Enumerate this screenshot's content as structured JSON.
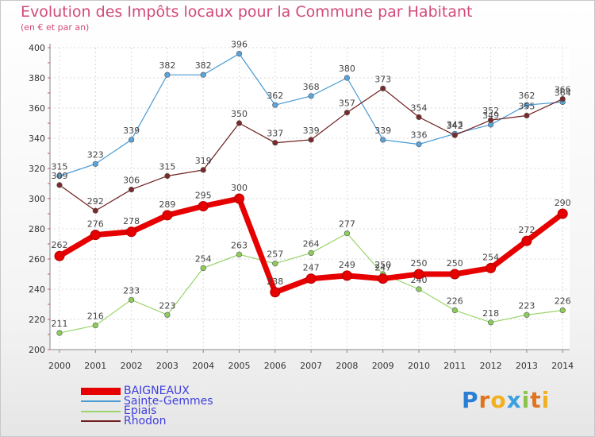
{
  "chart_data": {
    "type": "line",
    "title": "Evolution des Impôts locaux pour la Commune par Habitant",
    "subtitle": "(en € et par an)",
    "x": [
      2000,
      2001,
      2002,
      2003,
      2004,
      2005,
      2006,
      2007,
      2008,
      2009,
      2010,
      2011,
      2012,
      2013,
      2014
    ],
    "x_tick_labels": [
      "2000",
      "2001",
      "2002",
      "2003",
      "2004",
      "2005",
      "2006",
      "2007",
      "2008",
      "2009",
      "2010",
      "2011",
      "2012",
      "2013",
      "2014"
    ],
    "ylim": [
      200,
      400
    ],
    "y_ticks": [
      200,
      220,
      240,
      260,
      280,
      300,
      320,
      340,
      360,
      380,
      400
    ],
    "grid": true,
    "legend_position": "bottom-left",
    "series": [
      {
        "name": "Sainte-Gemmes",
        "color": "#4a9ad4",
        "marker_fill": "#5aa4dc",
        "emphasis": false,
        "values": [
          315,
          323,
          339,
          382,
          382,
          396,
          362,
          368,
          380,
          339,
          336,
          343,
          349,
          362,
          364
        ]
      },
      {
        "name": "Rhodon",
        "color": "#6e1e1e",
        "marker_fill": "#7a2a2a",
        "emphasis": false,
        "values": [
          309,
          292,
          306,
          315,
          319,
          350,
          337,
          339,
          357,
          373,
          354,
          342,
          352,
          355,
          366
        ]
      },
      {
        "name": "Epiais",
        "color": "#9ad46a",
        "marker_fill": "#8ccc5a",
        "emphasis": false,
        "values": [
          211,
          216,
          233,
          223,
          254,
          263,
          257,
          264,
          277,
          250,
          240,
          226,
          218,
          223,
          226
        ]
      },
      {
        "name": "BAIGNEAUX",
        "color": "#e60000",
        "marker_fill": "#e60000",
        "emphasis": true,
        "values": [
          262,
          276,
          278,
          289,
          295,
          300,
          238,
          247,
          249,
          247,
          250,
          250,
          254,
          272,
          290
        ]
      }
    ],
    "legend_order": [
      "BAIGNEAUX",
      "Sainte-Gemmes",
      "Epiais",
      "Rhodon"
    ]
  },
  "logo": {
    "letters": [
      "P",
      "r",
      "o",
      "x",
      "i",
      "t",
      "i"
    ],
    "colors": [
      "#2a7fd4",
      "#e0741e",
      "#f0b020",
      "#3aa0e0",
      "#8bc34a",
      "#e0741e",
      "#f0b020"
    ]
  }
}
